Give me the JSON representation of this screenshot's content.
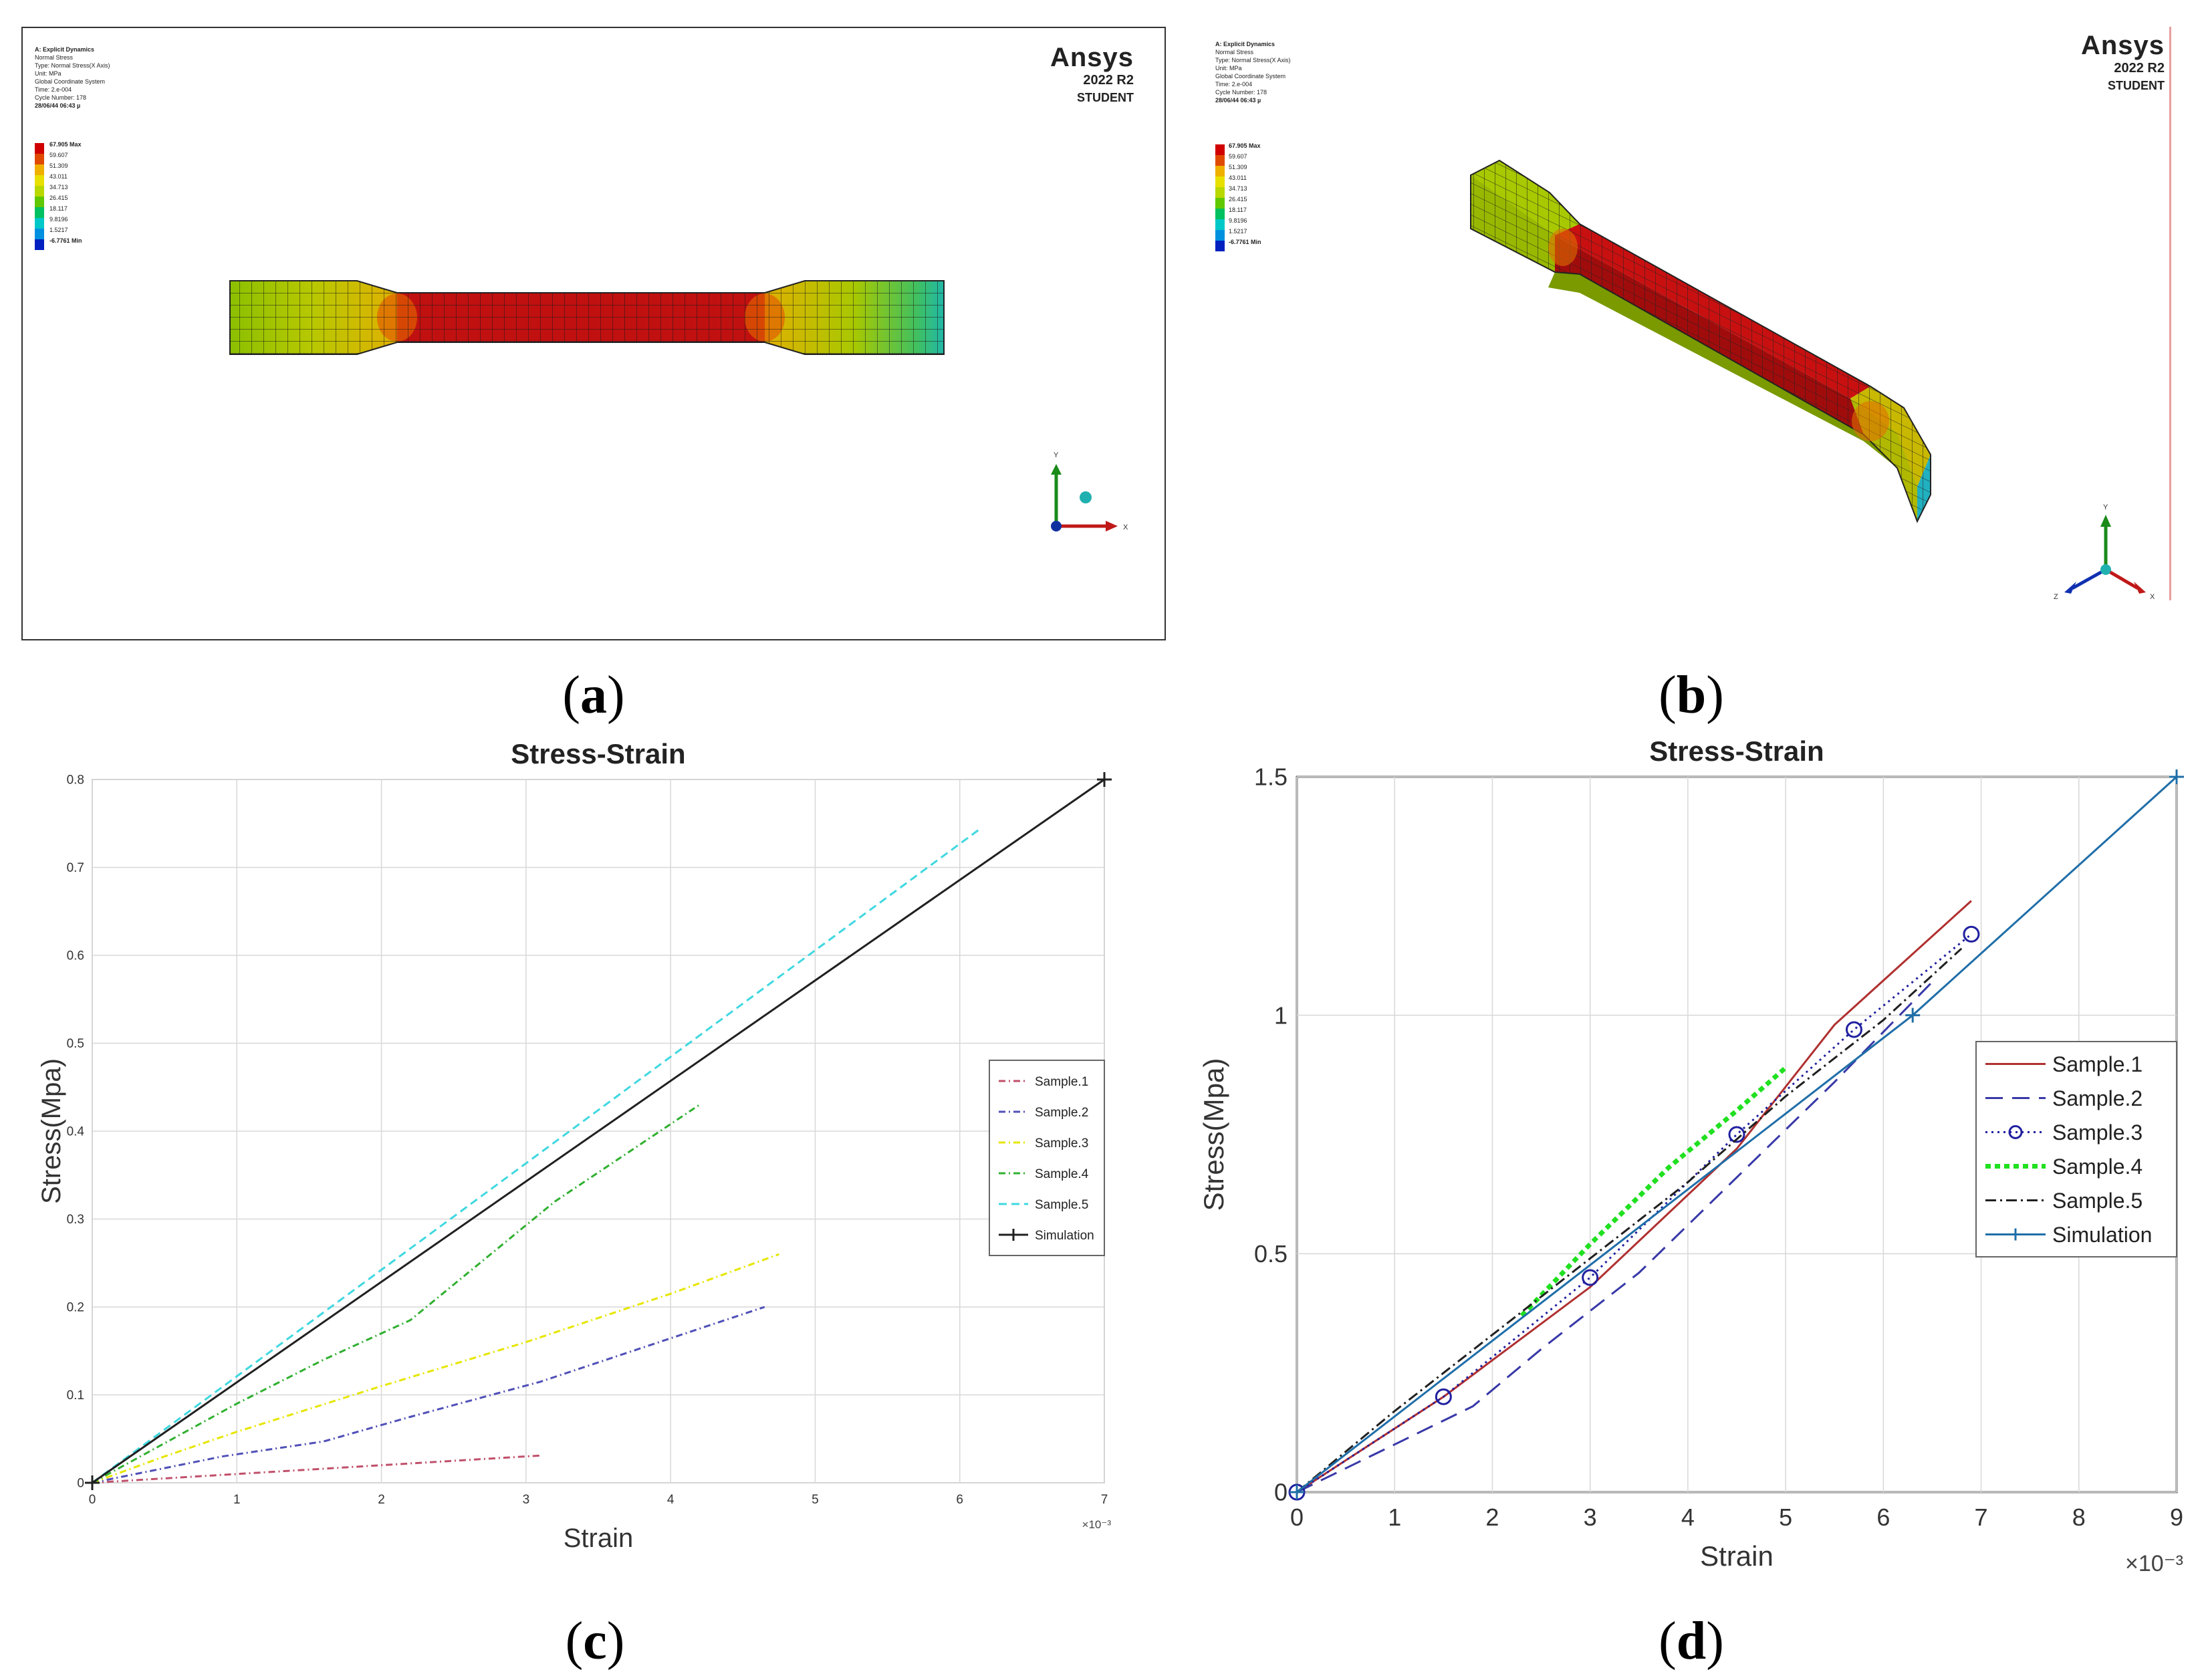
{
  "panel_labels": [
    "a",
    "b",
    "c",
    "d"
  ],
  "simulation": {
    "logo_name": "Ansys",
    "logo_version": "2022 R2",
    "logo_edition": "STUDENT",
    "info_lines": [
      "A: Explicit Dynamics",
      "Normal Stress",
      "Type: Normal Stress(X Axis)",
      "Unit: MPa",
      "Global Coordinate System",
      "Time: 2.e-004",
      "Cycle Number: 178",
      "28/06/44 06:43 µ"
    ],
    "legend_values": [
      "67.905 Max",
      "59.607",
      "51.309",
      "43.011",
      "34.713",
      "26.415",
      "18.117",
      "9.8196",
      "1.5217",
      "-6.7761 Min"
    ],
    "legend_colors": [
      "#d00000",
      "#e04a00",
      "#f0b000",
      "#e8e000",
      "#b8d800",
      "#60c800",
      "#00c060",
      "#00c8c8",
      "#0090e0",
      "#0020c0"
    ],
    "axis_labels": {
      "x": "X",
      "y": "Y",
      "z": "Z"
    }
  },
  "chart_data": [
    {
      "type": "line",
      "title": "Stress-Strain",
      "xlabel": "Strain",
      "ylabel": "Stress(Mpa)",
      "x_scale_note": "×10⁻³",
      "xlim": [
        0,
        7
      ],
      "ylim": [
        0,
        0.8
      ],
      "xticks": [
        "0",
        "1",
        "2",
        "3",
        "4",
        "5",
        "6",
        "7"
      ],
      "yticks": [
        "0",
        "0.1",
        "0.2",
        "0.3",
        "0.4",
        "0.5",
        "0.6",
        "0.7",
        "0.8"
      ],
      "legend_position": "right",
      "series": [
        {
          "name": "Sample.1",
          "color": "#c0506a",
          "dash": "10,5,2,5",
          "x": [
            0,
            0.8,
            1.6,
            2.2,
            3.1
          ],
          "y": [
            0,
            0.008,
            0.016,
            0.022,
            0.031
          ]
        },
        {
          "name": "Sample.2",
          "color": "#5050b8",
          "dash": "10,5,2,5",
          "x": [
            0,
            0.9,
            1.6,
            2.2,
            3.1,
            4.65
          ],
          "y": [
            0,
            0.03,
            0.047,
            0.075,
            0.115,
            0.2
          ]
        },
        {
          "name": "Sample.3",
          "color": "#e6e600",
          "dash": "10,5,2,5",
          "x": [
            0,
            0.5,
            1.0,
            2.0,
            3.0,
            4.0,
            4.75
          ],
          "y": [
            0,
            0.03,
            0.058,
            0.11,
            0.16,
            0.215,
            0.26
          ]
        },
        {
          "name": "Sample.4",
          "color": "#30b030",
          "dash": "10,5,2,5",
          "x": [
            0,
            0.5,
            1.0,
            1.6,
            2.2,
            3.2,
            4.2
          ],
          "y": [
            0,
            0.045,
            0.09,
            0.14,
            0.185,
            0.32,
            0.43
          ]
        },
        {
          "name": "Sample.5",
          "color": "#40d8e0",
          "dash": "12,7",
          "x": [
            0,
            6.15
          ],
          "y": [
            0,
            0.745
          ]
        },
        {
          "name": "Simulation",
          "color": "#202020",
          "dash": "",
          "marker": "plus",
          "x": [
            0,
            7
          ],
          "y": [
            0,
            0.8
          ]
        }
      ]
    },
    {
      "type": "line",
      "title": "Stress-Strain",
      "xlabel": "Strain",
      "ylabel": "Stress(Mpa)",
      "x_scale_note": "×10⁻³",
      "xlim": [
        0,
        9
      ],
      "ylim": [
        0,
        1.5
      ],
      "xticks": [
        "0",
        "1",
        "2",
        "3",
        "4",
        "5",
        "6",
        "7",
        "8",
        "9"
      ],
      "yticks": [
        "0",
        "0.5",
        "1",
        "1.5"
      ],
      "legend_position": "right",
      "series": [
        {
          "name": "Sample.1",
          "color": "#b03030",
          "dash": "",
          "x": [
            0,
            1.5,
            3.0,
            4.5,
            5.5,
            6.9
          ],
          "y": [
            0,
            0.2,
            0.43,
            0.72,
            0.98,
            1.24
          ]
        },
        {
          "name": "Sample.2",
          "color": "#3838a8",
          "dash": "26,14",
          "x": [
            0,
            1.0,
            1.8,
            2.5,
            3.5,
            4.5,
            5.5,
            6.5
          ],
          "y": [
            0,
            0.1,
            0.18,
            0.3,
            0.46,
            0.66,
            0.86,
            1.07
          ]
        },
        {
          "name": "Sample.3",
          "color": "#2020a0",
          "dash": "3,6",
          "marker": "circle",
          "x": [
            0,
            1.5,
            3.0,
            4.5,
            5.7,
            6.9
          ],
          "y": [
            0,
            0.2,
            0.45,
            0.75,
            0.97,
            1.17
          ]
        },
        {
          "name": "Sample.4",
          "color": "#20e020",
          "dash": "8,6",
          "width": 7,
          "x": [
            2.3,
            3.0,
            3.8,
            4.5,
            5.0
          ],
          "y": [
            0.37,
            0.52,
            0.68,
            0.8,
            0.89
          ]
        },
        {
          "name": "Sample.5",
          "color": "#202020",
          "dash": "16,6,3,6",
          "x": [
            0,
            1.0,
            2.0,
            3.0,
            4.0,
            5.0,
            6.0,
            6.8
          ],
          "y": [
            0,
            0.17,
            0.33,
            0.49,
            0.65,
            0.83,
            0.99,
            1.14
          ]
        },
        {
          "name": "Simulation",
          "color": "#1f6ea8",
          "dash": "",
          "marker": "plus",
          "x": [
            0,
            6.3,
            9.0
          ],
          "y": [
            0,
            1.0,
            1.5
          ]
        }
      ]
    }
  ]
}
